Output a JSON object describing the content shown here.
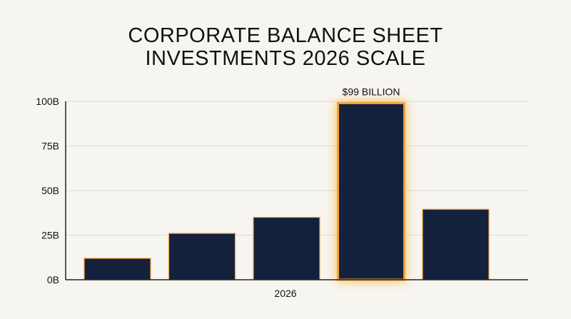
{
  "chart_data": {
    "type": "bar",
    "title_lines": [
      "CORPORATE BALANCE SHEET",
      "INVESTMENTS 2026 SCALE"
    ],
    "xlabel": "2026",
    "ylabel": "",
    "ylim": [
      0,
      100
    ],
    "yticks": [
      0,
      25,
      50,
      75,
      100
    ],
    "ytick_labels": [
      "0B",
      "25B",
      "50B",
      "75B",
      "100B"
    ],
    "values": [
      12,
      26,
      35,
      99,
      39.5
    ],
    "highlight_index": 3,
    "highlight_label": "$99 BILLION",
    "grid": true,
    "legend": "none",
    "colors": {
      "bar_fill": "#14213d",
      "bar_edge": "#f2a13a",
      "glow": "#ffb640",
      "grid": "#dcdad4",
      "axis": "#222222",
      "background": "#f7f5f0"
    }
  }
}
